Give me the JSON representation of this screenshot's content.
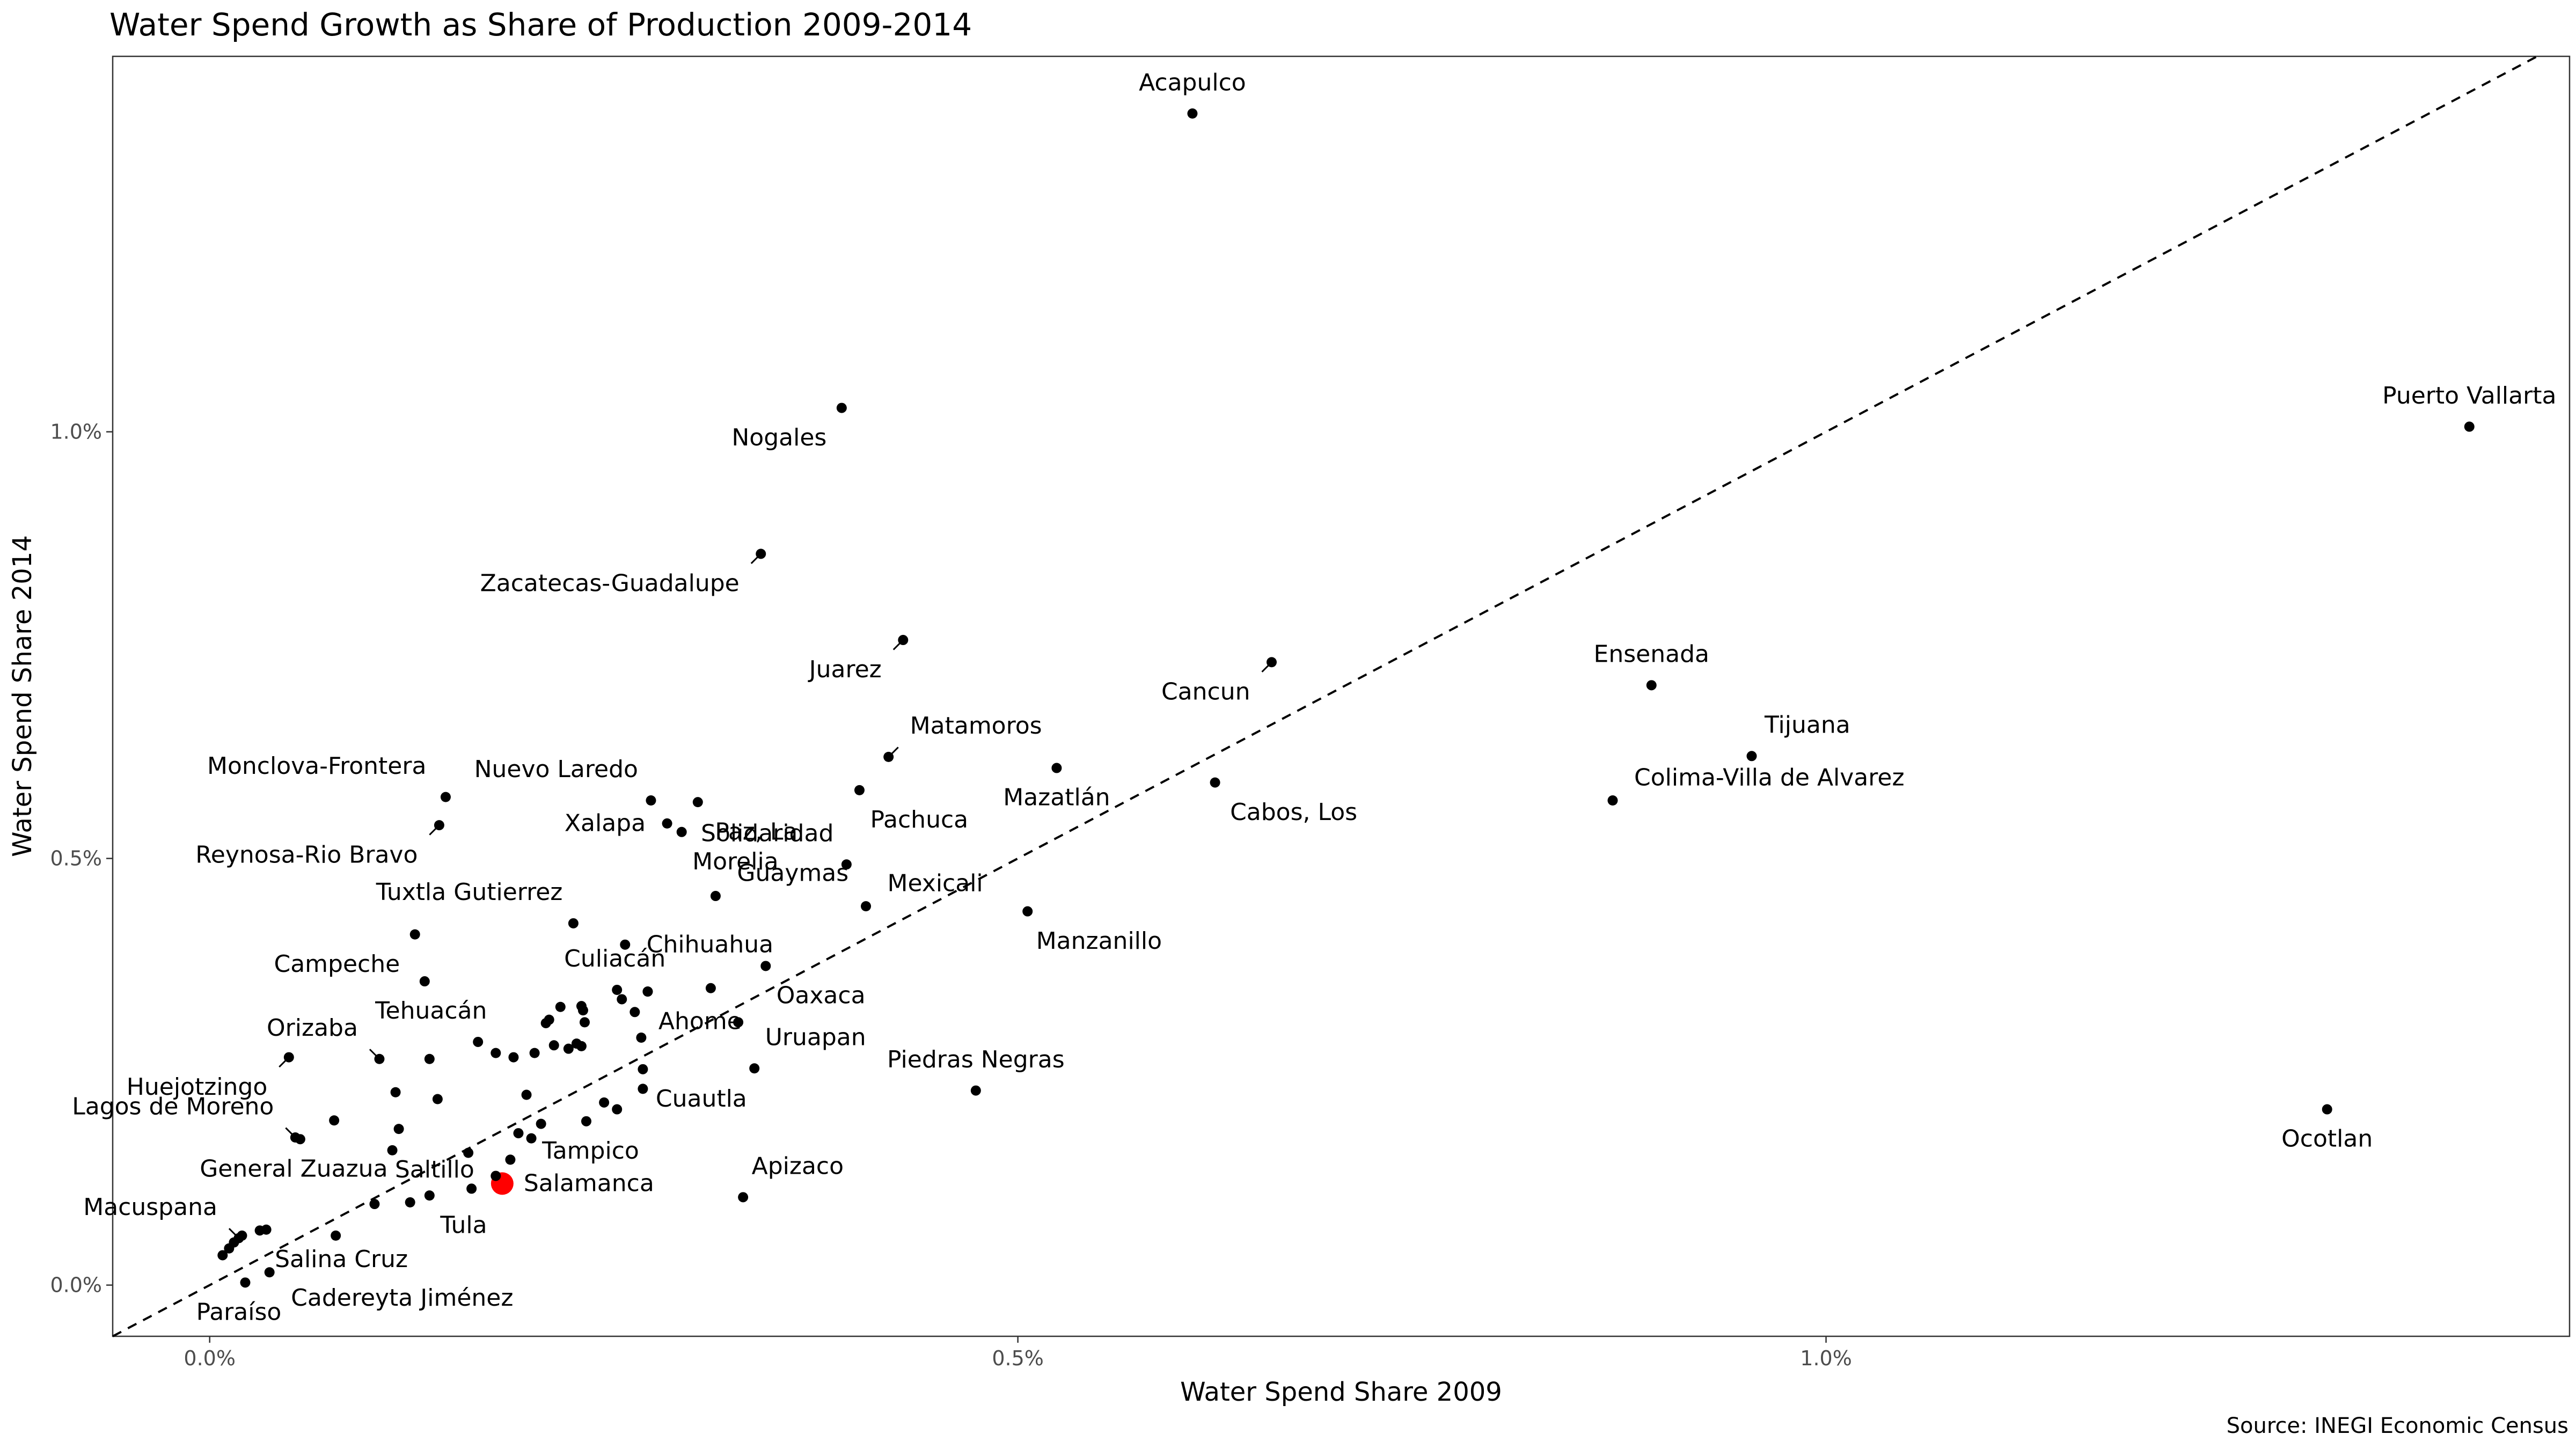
{
  "chart_data": {
    "type": "scatter",
    "title": "Water Spend Growth as Share of Production 2009-2014",
    "xlabel": "Water Spend Share 2009",
    "ylabel": "Water Spend Share 2014",
    "caption": "Source: INEGI Economic Census",
    "xlim": [
      -0.0006,
      0.0146
    ],
    "ylim": [
      -0.0006,
      0.0144
    ],
    "x_ticks": [
      {
        "value": 0.0,
        "label": "0.0%"
      },
      {
        "value": 0.005,
        "label": "0.5%"
      },
      {
        "value": 0.01,
        "label": "1.0%"
      }
    ],
    "y_ticks": [
      {
        "value": 0.0,
        "label": "0.0%"
      },
      {
        "value": 0.005,
        "label": "0.5%"
      },
      {
        "value": 0.01,
        "label": "1.0%"
      }
    ],
    "reference_line": {
      "type": "y=x",
      "style": "dashed"
    },
    "grid": false,
    "highlight_color": "#ff0000",
    "point_color": "#000000",
    "points": [
      {
        "x": 0.00608,
        "y": 0.01373,
        "label": "Acapulco",
        "ldx": 0,
        "ldy": -1
      },
      {
        "x": 0.01398,
        "y": 0.01006,
        "label": "Puerto Vallarta",
        "ldx": 0,
        "ldy": -1
      },
      {
        "x": 0.00391,
        "y": 0.01028,
        "label": "Nogales",
        "ldx": -0.7,
        "ldy": 1
      },
      {
        "x": 0.00341,
        "y": 0.00857,
        "label": "Zacatecas-Guadalupe",
        "ldx": -1,
        "ldy": 1
      },
      {
        "x": 0.00429,
        "y": 0.00756,
        "label": "Juarez",
        "ldx": -1,
        "ldy": 1
      },
      {
        "x": 0.00657,
        "y": 0.0073,
        "label": "Cancun",
        "ldx": -1,
        "ldy": 1
      },
      {
        "x": 0.00892,
        "y": 0.00703,
        "label": "Ensenada",
        "ldx": 0,
        "ldy": -1
      },
      {
        "x": 0.00954,
        "y": 0.0062,
        "label": "Tijuana",
        "ldx": 0.6,
        "ldy": -1
      },
      {
        "x": 0.00868,
        "y": 0.00568,
        "label": "Colima-Villa de Alvarez",
        "ldx": 1,
        "ldy": -0.6
      },
      {
        "x": 0.0042,
        "y": 0.00619,
        "label": "Matamoros",
        "ldx": 1,
        "ldy": -1
      },
      {
        "x": 0.00524,
        "y": 0.00606,
        "label": "Mazatlán",
        "ldx": 0,
        "ldy": 1
      },
      {
        "x": 0.00622,
        "y": 0.00589,
        "label": "Cabos, Los",
        "ldx": 0.7,
        "ldy": 1
      },
      {
        "x": 0.00402,
        "y": 0.0058,
        "label": "Pachuca",
        "ldx": 0.5,
        "ldy": 1
      },
      {
        "x": 0.00146,
        "y": 0.00572,
        "label": "Monclova-Frontera",
        "ldx": -0.9,
        "ldy": -1
      },
      {
        "x": 0.00273,
        "y": 0.00568,
        "label": "Nuevo Laredo",
        "ldx": -0.6,
        "ldy": -1
      },
      {
        "x": 0.00302,
        "y": 0.00566,
        "label": "Paz, La",
        "ldx": 0.8,
        "ldy": 1
      },
      {
        "x": 0.00142,
        "y": 0.00539,
        "label": "Reynosa-Rio Bravo",
        "ldx": -1,
        "ldy": 1
      },
      {
        "x": 0.00283,
        "y": 0.00541,
        "label": "Xalapa",
        "ldx": -1,
        "ldy": 0
      },
      {
        "x": 0.00292,
        "y": 0.00531,
        "label": "Morelia",
        "ldx": 0.5,
        "ldy": 1
      },
      {
        "x": 0.00394,
        "y": 0.00493,
        "label": "Solidaridad",
        "ldx": -0.6,
        "ldy": -1
      },
      {
        "x": 0.00313,
        "y": 0.00456,
        "label": "Guaymas",
        "ldx": 1,
        "ldy": -0.6
      },
      {
        "x": 0.00406,
        "y": 0.00444,
        "label": "Mexicali",
        "ldx": 1,
        "ldy": -0.6
      },
      {
        "x": 0.00506,
        "y": 0.00438,
        "label": "Manzanillo",
        "ldx": 0.4,
        "ldy": 1
      },
      {
        "x": 0.00225,
        "y": 0.00424,
        "label": "Tuxtla Gutierrez",
        "ldx": -0.5,
        "ldy": -1
      },
      {
        "x": 0.00127,
        "y": 0.00411,
        "label": "Campeche",
        "ldx": -0.7,
        "ldy": 1
      },
      {
        "x": 0.00257,
        "y": 0.00399,
        "label": "Chihuahua",
        "ldx": 1,
        "ldy": 0
      },
      {
        "x": 0.00344,
        "y": 0.00374,
        "label": "Oaxaca",
        "ldx": 0.5,
        "ldy": 1
      },
      {
        "x": 0.00133,
        "y": 0.00356,
        "label": "Tehuacán",
        "ldx": 0.3,
        "ldy": 1
      },
      {
        "x": 0.00252,
        "y": 0.00346,
        "label": "Culiacán",
        "ldx": -0.1,
        "ldy": -1
      },
      {
        "x": 0.00271,
        "y": 0.00344,
        "label": "Ahome",
        "ldx": 0.5,
        "ldy": 1
      },
      {
        "x": 0.0031,
        "y": 0.00348,
        "label": "",
        "ldx": 0,
        "ldy": 0
      },
      {
        "x": 0.00049,
        "y": 0.00267,
        "label": "Huejotzingo",
        "ldx": -1,
        "ldy": 1
      },
      {
        "x": 0.00105,
        "y": 0.00265,
        "label": "Orizaba",
        "ldx": -1,
        "ldy": -1
      },
      {
        "x": 0.00337,
        "y": 0.00254,
        "label": "Uruapan",
        "ldx": 0.5,
        "ldy": -1
      },
      {
        "x": 0.00268,
        "y": 0.00253,
        "label": "Cuautla",
        "ldx": 0.6,
        "ldy": 1
      },
      {
        "x": 0.00474,
        "y": 0.00228,
        "label": "Piedras Negras",
        "ldx": 0,
        "ldy": -1
      },
      {
        "x": 0.00233,
        "y": 0.00192,
        "label": "Tampico",
        "ldx": 0.2,
        "ldy": 1
      },
      {
        "x": 0.0131,
        "y": 0.00206,
        "label": "Ocotlan",
        "ldx": 0,
        "ldy": 1
      },
      {
        "x": 0.00053,
        "y": 0.00173,
        "label": "Lagos de Moreno",
        "ldx": -1,
        "ldy": -1
      },
      {
        "x": 0.00056,
        "y": 0.00171,
        "label": "General Zuazua",
        "ldx": -0.3,
        "ldy": 1
      },
      {
        "x": 0.00181,
        "y": 0.00119,
        "label": "Salamanca",
        "ldx": 1,
        "ldy": 0,
        "highlight": true
      },
      {
        "x": 0.0033,
        "y": 0.00103,
        "label": "Apizaco",
        "ldx": 0.4,
        "ldy": -1
      },
      {
        "x": 0.00177,
        "y": 0.00128,
        "label": "Saltillo",
        "ldx": -1,
        "ldy": -0.3
      },
      {
        "x": 0.00136,
        "y": 0.00105,
        "label": "Tula",
        "ldx": 0.5,
        "ldy": 1
      },
      {
        "x": 0.00018,
        "y": 0.00055,
        "label": "Macuspana",
        "ldx": -1,
        "ldy": -1
      },
      {
        "x": 0.00035,
        "y": 0.00065,
        "label": "Salina Cruz",
        "ldx": 0.4,
        "ldy": 1
      },
      {
        "x": 0.00037,
        "y": 0.00015,
        "label": "Cadereyta Jiménez",
        "ldx": 1,
        "ldy": 0.8
      },
      {
        "x": 0.00022,
        "y": 3e-05,
        "label": "Paraíso",
        "ldx": -0.3,
        "ldy": 1
      },
      {
        "x": 8e-05,
        "y": 0.00035,
        "label": "",
        "ldx": 0,
        "ldy": 0
      },
      {
        "x": 0.00012,
        "y": 0.00043,
        "label": "",
        "ldx": 0,
        "ldy": 0
      },
      {
        "x": 0.00015,
        "y": 0.0005,
        "label": "",
        "ldx": 0,
        "ldy": 0
      },
      {
        "x": 0.0002,
        "y": 0.00058,
        "label": "",
        "ldx": 0,
        "ldy": 0
      },
      {
        "x": 0.00078,
        "y": 0.00058,
        "label": "",
        "ldx": 0,
        "ldy": 0
      },
      {
        "x": 0.00077,
        "y": 0.00193,
        "label": "",
        "ldx": 0,
        "ldy": 0
      },
      {
        "x": 0.00102,
        "y": 0.00095,
        "label": "",
        "ldx": 0,
        "ldy": 0
      },
      {
        "x": 0.00113,
        "y": 0.00158,
        "label": "",
        "ldx": 0,
        "ldy": 0
      },
      {
        "x": 0.00117,
        "y": 0.00183,
        "label": "",
        "ldx": 0,
        "ldy": 0
      },
      {
        "x": 0.00115,
        "y": 0.00226,
        "label": "",
        "ldx": 0,
        "ldy": 0
      },
      {
        "x": 0.00124,
        "y": 0.00097,
        "label": "",
        "ldx": 0,
        "ldy": 0
      },
      {
        "x": 0.00136,
        "y": 0.00265,
        "label": "",
        "ldx": 0,
        "ldy": 0
      },
      {
        "x": 0.00141,
        "y": 0.00218,
        "label": "",
        "ldx": 0,
        "ldy": 0
      },
      {
        "x": 0.0016,
        "y": 0.00155,
        "label": "",
        "ldx": 0,
        "ldy": 0
      },
      {
        "x": 0.00162,
        "y": 0.00113,
        "label": "",
        "ldx": 0,
        "ldy": 0
      },
      {
        "x": 0.00166,
        "y": 0.00285,
        "label": "",
        "ldx": 0,
        "ldy": 0
      },
      {
        "x": 0.00177,
        "y": 0.00272,
        "label": "",
        "ldx": 0,
        "ldy": 0
      },
      {
        "x": 0.00186,
        "y": 0.00147,
        "label": "",
        "ldx": 0,
        "ldy": 0
      },
      {
        "x": 0.00188,
        "y": 0.00267,
        "label": "",
        "ldx": 0,
        "ldy": 0
      },
      {
        "x": 0.00191,
        "y": 0.00178,
        "label": "",
        "ldx": 0,
        "ldy": 0
      },
      {
        "x": 0.00196,
        "y": 0.00223,
        "label": "",
        "ldx": 0,
        "ldy": 0
      },
      {
        "x": 0.00199,
        "y": 0.00172,
        "label": "",
        "ldx": 0,
        "ldy": 0
      },
      {
        "x": 0.00201,
        "y": 0.00272,
        "label": "",
        "ldx": 0,
        "ldy": 0
      },
      {
        "x": 0.00205,
        "y": 0.00189,
        "label": "",
        "ldx": 0,
        "ldy": 0
      },
      {
        "x": 0.00208,
        "y": 0.00307,
        "label": "",
        "ldx": 0,
        "ldy": 0
      },
      {
        "x": 0.0021,
        "y": 0.00311,
        "label": "",
        "ldx": 0,
        "ldy": 0
      },
      {
        "x": 0.00213,
        "y": 0.00281,
        "label": "",
        "ldx": 0,
        "ldy": 0
      },
      {
        "x": 0.00217,
        "y": 0.00326,
        "label": "",
        "ldx": 0,
        "ldy": 0
      },
      {
        "x": 0.00222,
        "y": 0.00277,
        "label": "",
        "ldx": 0,
        "ldy": 0
      },
      {
        "x": 0.00227,
        "y": 0.00283,
        "label": "",
        "ldx": 0,
        "ldy": 0
      },
      {
        "x": 0.0023,
        "y": 0.00327,
        "label": "",
        "ldx": 0,
        "ldy": 0
      },
      {
        "x": 0.00231,
        "y": 0.00322,
        "label": "",
        "ldx": 0,
        "ldy": 0
      },
      {
        "x": 0.00232,
        "y": 0.00308,
        "label": "",
        "ldx": 0,
        "ldy": 0
      },
      {
        "x": 0.0023,
        "y": 0.0028,
        "label": "",
        "ldx": 0,
        "ldy": 0
      },
      {
        "x": 0.00244,
        "y": 0.00214,
        "label": "",
        "ldx": 0,
        "ldy": 0
      },
      {
        "x": 0.00252,
        "y": 0.00206,
        "label": "",
        "ldx": 0,
        "ldy": 0
      },
      {
        "x": 0.00255,
        "y": 0.00335,
        "label": "",
        "ldx": 0,
        "ldy": 0
      },
      {
        "x": 0.00263,
        "y": 0.0032,
        "label": "",
        "ldx": 0,
        "ldy": 0
      },
      {
        "x": 0.00267,
        "y": 0.0029,
        "label": "",
        "ldx": 0,
        "ldy": 0
      },
      {
        "x": 0.00268,
        "y": 0.0023,
        "label": "",
        "ldx": 0,
        "ldy": 0
      },
      {
        "x": 0.00271,
        "y": 0.00344,
        "label": "",
        "ldx": 0,
        "ldy": 0
      },
      {
        "x": 0.00327,
        "y": 0.00308,
        "label": "",
        "ldx": 0,
        "ldy": 0
      },
      {
        "x": 0.00031,
        "y": 0.00064,
        "label": "",
        "ldx": 0,
        "ldy": 0
      }
    ]
  }
}
